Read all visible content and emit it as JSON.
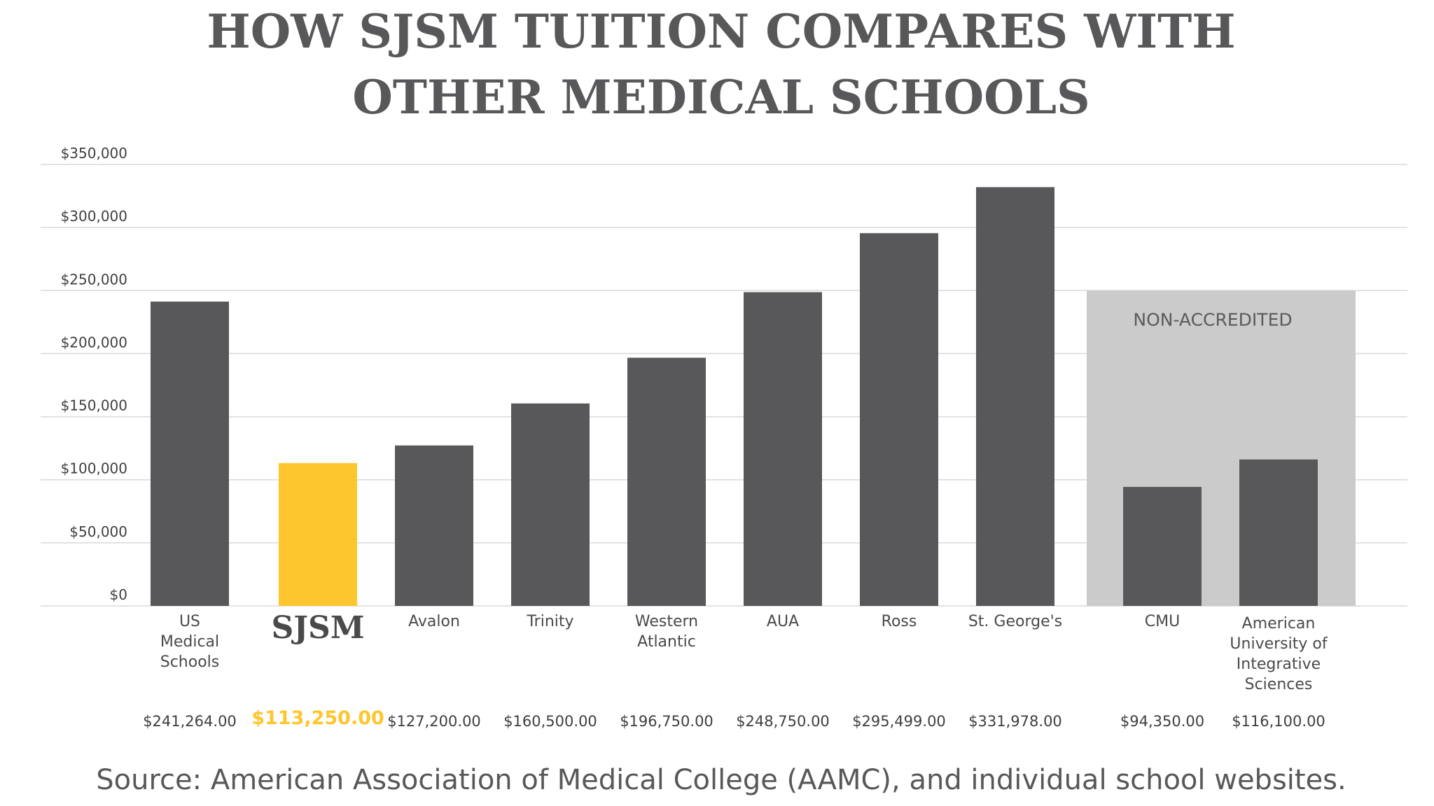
{
  "chart_data": {
    "type": "bar",
    "title_lines": [
      "HOW SJSM TUITION COMPARES WITH",
      "OTHER MEDICAL SCHOOLS"
    ],
    "categories": [
      [
        "US",
        "Medical",
        "Schools"
      ],
      [
        "SJSM"
      ],
      [
        "Avalon"
      ],
      [
        "Trinity"
      ],
      [
        "Western",
        "Atlantic"
      ],
      [
        "AUA"
      ],
      [
        "Ross"
      ],
      [
        "St. George's"
      ],
      [
        "CMU"
      ],
      [
        "American",
        "University of",
        "Integrative",
        "Sciences"
      ]
    ],
    "values": [
      241264,
      113250,
      127200,
      160500,
      196750,
      248750,
      295499,
      331978,
      94350,
      116100
    ],
    "value_labels": [
      "$241,264.00",
      "$113,250.00",
      "$127,200.00",
      "$160,500.00",
      "$196,750.00",
      "$248,750.00",
      "$295,499.00",
      "$331,978.00",
      "$94,350.00",
      "$116,100.00"
    ],
    "highlight_index": 1,
    "ylim": [
      0,
      350000
    ],
    "yticks": [
      0,
      50000,
      100000,
      150000,
      200000,
      250000,
      300000,
      350000
    ],
    "ytick_labels": [
      "$0",
      "$50,000",
      "$100,000",
      "$150,000",
      "$200,000",
      "$250,000",
      "$300,000",
      "$350,000"
    ],
    "grid": true,
    "region": {
      "label": "NON-ACCREDITED",
      "categories_from": 8,
      "categories_to": 9,
      "top_value": 250000
    },
    "colors": {
      "bar": "#58585a",
      "highlight": "#fec62e",
      "region": "#cccbcc",
      "grid": "#d9d9d9"
    },
    "source": "Source: American Association of Medical College (AAMC), and individual school websites."
  }
}
